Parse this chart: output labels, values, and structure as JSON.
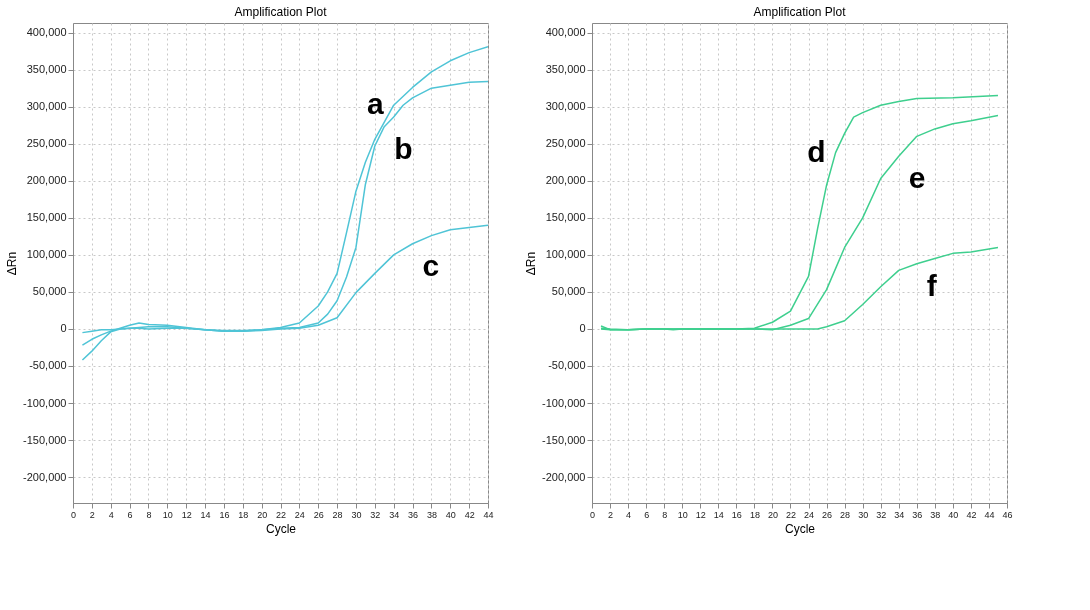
{
  "chart_data": [
    {
      "type": "line",
      "title": "Amplification Plot",
      "xlabel": "Cycle",
      "ylabel": "ΔRn",
      "marker": "none",
      "line_style": "solid",
      "grid": true,
      "xlim": [
        0,
        44
      ],
      "xticks": [
        0,
        2,
        4,
        6,
        8,
        10,
        12,
        14,
        16,
        18,
        20,
        22,
        24,
        26,
        28,
        30,
        32,
        34,
        36,
        38,
        40,
        42,
        44
      ],
      "ylim": [
        -235000,
        413000
      ],
      "yticks": [
        {
          "value": -200000,
          "label": "-200,000"
        },
        {
          "value": -150000,
          "label": "-150,000"
        },
        {
          "value": -100000,
          "label": "-100,000"
        },
        {
          "value": -50000,
          "label": "-50,000"
        },
        0,
        {
          "value": 50000,
          "label": "50,000"
        },
        {
          "value": 100000,
          "label": "100,000"
        },
        {
          "value": 150000,
          "label": "150,000"
        },
        {
          "value": 200000,
          "label": "200,000"
        },
        {
          "value": 250000,
          "label": "250,000"
        },
        {
          "value": 300000,
          "label": "300,000"
        },
        {
          "value": 350000,
          "label": "350,000"
        },
        {
          "value": 400000,
          "label": "400,000"
        }
      ],
      "series": [
        {
          "name": "a",
          "color": "#4fc4d6",
          "x": [
            1,
            2,
            3,
            4,
            5,
            6,
            7,
            8,
            10,
            12,
            14,
            16,
            18,
            20,
            22,
            24,
            26,
            27,
            28,
            29,
            30,
            31,
            32,
            34,
            36,
            38,
            40,
            42,
            44
          ],
          "values": [
            -5000,
            -3000,
            -1000,
            -1000,
            0,
            1000,
            1000,
            0,
            1000,
            1000,
            -1000,
            -2000,
            -2000,
            -1000,
            2000,
            8000,
            31000,
            50000,
            75000,
            130000,
            186000,
            225000,
            256000,
            302000,
            326000,
            347000,
            362000,
            373000,
            381000
          ]
        },
        {
          "name": "b",
          "color": "#4fc4d6",
          "x": [
            1,
            2,
            3,
            4,
            5,
            6,
            7,
            8,
            10,
            12,
            14,
            16,
            18,
            20,
            22,
            24,
            26,
            27,
            28,
            29,
            30,
            31,
            32,
            33,
            34,
            35,
            36,
            38,
            40,
            42,
            44
          ],
          "values": [
            -22000,
            -14000,
            -8000,
            -3000,
            1000,
            5000,
            8000,
            6000,
            5000,
            2000,
            -1000,
            -3000,
            -3000,
            -1000,
            1000,
            2000,
            8000,
            20000,
            38000,
            70000,
            110000,
            195000,
            247000,
            273000,
            286000,
            302000,
            312000,
            325000,
            329000,
            333000,
            334000
          ]
        },
        {
          "name": "c",
          "color": "#4fc4d6",
          "x": [
            1,
            2,
            3,
            4,
            5,
            6,
            8,
            10,
            12,
            14,
            16,
            18,
            20,
            22,
            24,
            26,
            28,
            30,
            32,
            34,
            36,
            38,
            40,
            42,
            44
          ],
          "values": [
            -42000,
            -30000,
            -16000,
            -4000,
            0,
            1000,
            3000,
            3000,
            1000,
            -1000,
            -3000,
            -3000,
            -2000,
            0,
            1000,
            5000,
            15000,
            49000,
            75000,
            100000,
            115000,
            126000,
            134000,
            137000,
            140000
          ]
        }
      ]
    },
    {
      "type": "line",
      "title": "Amplification Plot",
      "xlabel": "Cycle",
      "ylabel": "ΔRn",
      "marker": "none",
      "line_style": "solid",
      "grid": true,
      "xlim": [
        0,
        46
      ],
      "xticks": [
        0,
        2,
        4,
        6,
        8,
        10,
        12,
        14,
        16,
        18,
        20,
        22,
        24,
        26,
        28,
        30,
        32,
        34,
        36,
        38,
        40,
        42,
        44,
        46
      ],
      "ylim": [
        -235000,
        413000
      ],
      "yticks": [
        {
          "value": -200000,
          "label": "-200,000"
        },
        {
          "value": -150000,
          "label": "-150,000"
        },
        {
          "value": -100000,
          "label": "-100,000"
        },
        {
          "value": -50000,
          "label": "-50,000"
        },
        0,
        {
          "value": 50000,
          "label": "50,000"
        },
        {
          "value": 100000,
          "label": "100,000"
        },
        {
          "value": 150000,
          "label": "150,000"
        },
        {
          "value": 200000,
          "label": "200,000"
        },
        {
          "value": 250000,
          "label": "250,000"
        },
        {
          "value": 300000,
          "label": "300,000"
        },
        {
          "value": 350000,
          "label": "350,000"
        },
        {
          "value": 400000,
          "label": "400,000"
        }
      ],
      "series": [
        {
          "name": "d",
          "color": "#3ecf8e",
          "x": [
            1,
            2,
            4,
            6,
            8,
            10,
            12,
            14,
            16,
            18,
            20,
            22,
            24,
            25,
            26,
            27,
            28,
            29,
            30,
            32,
            34,
            36,
            40,
            45
          ],
          "values": [
            4000,
            -1000,
            -1000,
            0,
            0,
            0,
            0,
            0,
            0,
            1000,
            9000,
            24000,
            71000,
            135000,
            194000,
            238000,
            264000,
            286000,
            292000,
            302000,
            307000,
            311000,
            312000,
            315000
          ]
        },
        {
          "name": "e",
          "color": "#3ecf8e",
          "x": [
            1,
            2,
            4,
            6,
            8,
            9,
            10,
            12,
            14,
            16,
            18,
            20,
            22,
            24,
            26,
            28,
            30,
            32,
            34,
            36,
            38,
            40,
            42,
            45
          ],
          "values": [
            0,
            -1000,
            -1000,
            0,
            0,
            -1000,
            0,
            0,
            0,
            0,
            0,
            -1000,
            5000,
            14000,
            53000,
            110000,
            150000,
            203000,
            233000,
            260000,
            270000,
            277000,
            281000,
            288000
          ]
        },
        {
          "name": "f",
          "color": "#3ecf8e",
          "x": [
            1,
            2,
            4,
            6,
            8,
            10,
            12,
            14,
            16,
            18,
            20,
            22,
            24,
            25,
            26,
            28,
            30,
            32,
            34,
            36,
            38,
            40,
            42,
            45
          ],
          "values": [
            1000,
            0,
            -1000,
            0,
            0,
            0,
            0,
            0,
            0,
            0,
            0,
            0,
            0,
            0,
            3000,
            11000,
            33000,
            57000,
            79000,
            88000,
            95000,
            102000,
            104000,
            110000
          ]
        }
      ]
    }
  ]
}
